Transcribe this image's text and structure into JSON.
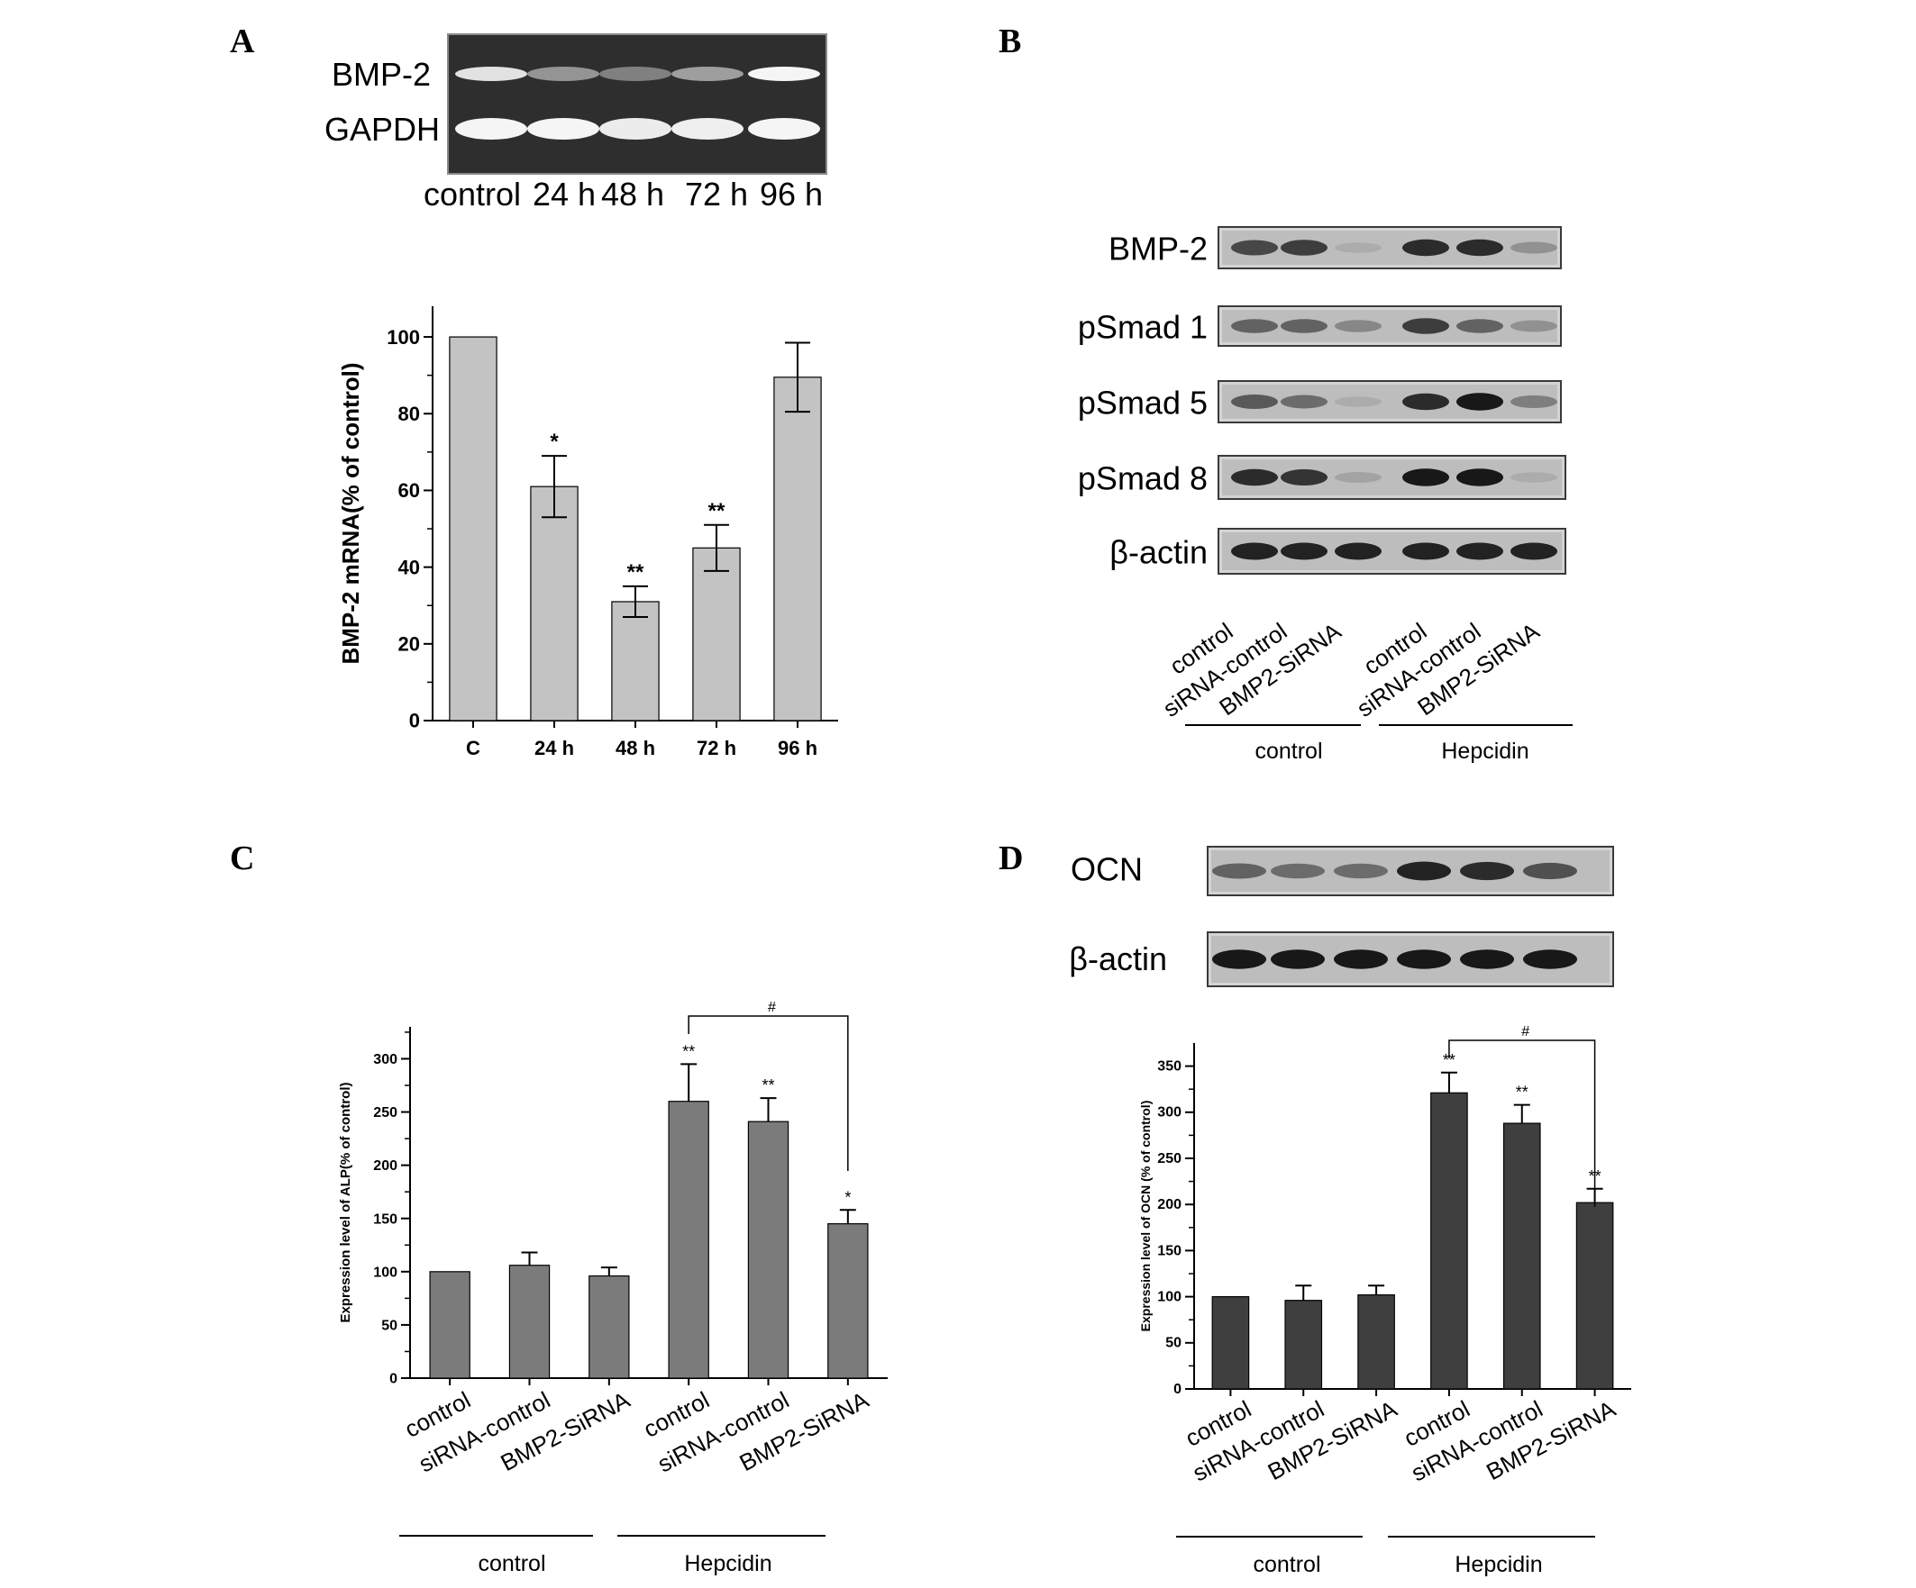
{
  "panels": {
    "A": {
      "letter": "A",
      "gel": {
        "rows": [
          "BMP-2",
          "GAPDH"
        ],
        "lanes": [
          "control",
          "24 h",
          "48 h",
          "72 h",
          "96 h"
        ],
        "intensity": {
          "BMP-2": [
            0.85,
            0.45,
            0.35,
            0.5,
            0.95
          ],
          "GAPDH": [
            0.95,
            0.95,
            0.9,
            0.92,
            0.95
          ]
        }
      },
      "chart": {
        "ylabel": "BMP-2 mRNA(% of control)"
      }
    },
    "B": {
      "letter": "B",
      "blots": [
        "BMP-2",
        "pSmad 1",
        "pSmad 5",
        "pSmad 8",
        "β-actin"
      ],
      "intensity": {
        "BMP-2": [
          0.7,
          0.75,
          0.15,
          0.85,
          0.85,
          0.3
        ],
        "pSmad 1": [
          0.55,
          0.55,
          0.35,
          0.75,
          0.55,
          0.3
        ],
        "pSmad 5": [
          0.6,
          0.5,
          0.15,
          0.85,
          0.95,
          0.4
        ],
        "pSmad 8": [
          0.85,
          0.8,
          0.2,
          0.95,
          0.95,
          0.15
        ],
        "β-actin": [
          0.9,
          0.9,
          0.9,
          0.9,
          0.9,
          0.9
        ]
      },
      "lanes": [
        "control",
        "siRNA-control",
        "BMP2-SiRNA",
        "control",
        "siRNA-control",
        "BMP2-SiRNA"
      ],
      "groups": [
        "control",
        "Hepcidin"
      ]
    },
    "C": {
      "letter": "C",
      "chart": {
        "ylabel": "Expression level of ALP(% of control)"
      },
      "groups": [
        "control",
        "Hepcidin"
      ]
    },
    "D": {
      "letter": "D",
      "blots": [
        "OCN",
        "β-actin"
      ],
      "intensity": {
        "OCN": [
          0.55,
          0.5,
          0.5,
          0.9,
          0.85,
          0.65
        ],
        "β-actin": [
          0.95,
          0.95,
          0.95,
          0.95,
          0.95,
          0.95
        ]
      },
      "chart": {
        "ylabel": "Expression level of OCN (% of control)"
      },
      "groups": [
        "control",
        "Hepcidin"
      ]
    }
  },
  "chart_data": [
    {
      "panel": "A",
      "type": "bar",
      "categories": [
        "C",
        "24 h",
        "48 h",
        "72 h",
        "96 h"
      ],
      "values": [
        100,
        61,
        31,
        45,
        89.5
      ],
      "errors": [
        0,
        8,
        4,
        6,
        9
      ],
      "significance": [
        "",
        "*",
        "**",
        "**",
        ""
      ],
      "ylim": [
        0,
        108
      ],
      "yticks": [
        0,
        20,
        40,
        60,
        80,
        100
      ],
      "ylabel": "BMP-2 mRNA(% of control)",
      "bar_color": "#c3c3c3"
    },
    {
      "panel": "C",
      "type": "bar",
      "categories": [
        "control",
        "siRNA-control",
        "BMP2-SiRNA",
        "control",
        "siRNA-control",
        "BMP2-SiRNA"
      ],
      "values": [
        100,
        106,
        96,
        260,
        241,
        145
      ],
      "errors": [
        0,
        12,
        8,
        35,
        22,
        13
      ],
      "significance": [
        "",
        "",
        "",
        "**",
        "**",
        "*"
      ],
      "bracket": {
        "from": 3,
        "to": 5,
        "label": "#"
      },
      "ylim": [
        0,
        330
      ],
      "yticks": [
        0,
        50,
        100,
        150,
        200,
        250,
        300
      ],
      "ylabel": "Expression level of ALP(% of control)",
      "bar_color": "#7b7b7b"
    },
    {
      "panel": "D",
      "type": "bar",
      "categories": [
        "control",
        "siRNA-control",
        "BMP2-SiRNA",
        "control",
        "siRNA-control",
        "BMP2-SiRNA"
      ],
      "values": [
        100,
        96,
        102,
        321,
        288,
        202
      ],
      "errors": [
        0,
        16,
        10,
        22,
        20,
        15
      ],
      "significance": [
        "",
        "",
        "",
        "**",
        "**",
        "**"
      ],
      "bracket": {
        "from": 3,
        "to": 5,
        "label": "#"
      },
      "ylim": [
        0,
        375
      ],
      "yticks": [
        0,
        50,
        100,
        150,
        200,
        250,
        300,
        350
      ],
      "ylabel": "Expression level of OCN (% of control)",
      "bar_color": "#3f3f3f"
    }
  ]
}
